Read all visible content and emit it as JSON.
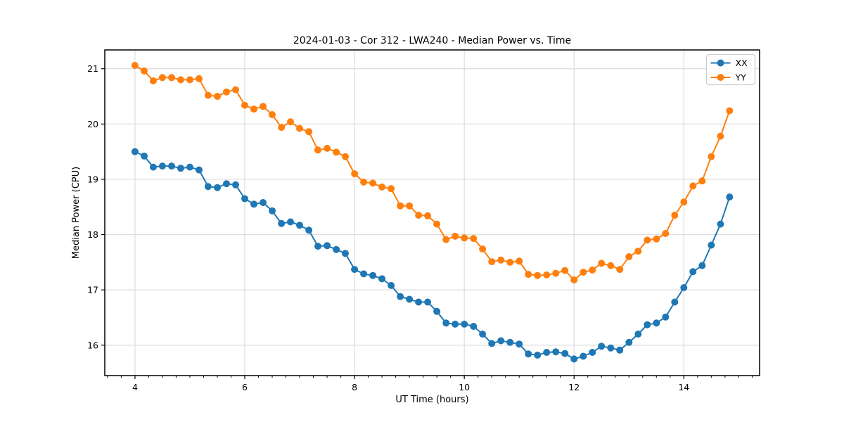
{
  "chart_data": {
    "type": "line",
    "title": "2024-01-03 - Cor 312 - LWA240 - Median Power vs. Time",
    "xlabel": "UT Time (hours)",
    "ylabel": "Median Power (CPU)",
    "xlim": [
      3.45,
      15.38
    ],
    "ylim": [
      15.45,
      21.34
    ],
    "xticks": [
      4,
      6,
      8,
      10,
      12,
      14
    ],
    "yticks": [
      16,
      17,
      18,
      19,
      20,
      21
    ],
    "x_minor_step": 0.25,
    "grid": true,
    "legend": {
      "position": "upper right",
      "entries": [
        {
          "label": "XX",
          "color": "#1f77b4"
        },
        {
          "label": "YY",
          "color": "#ff7f0e"
        }
      ]
    },
    "x": [
      4.0,
      4.167,
      4.333,
      4.5,
      4.667,
      4.833,
      5.0,
      5.167,
      5.333,
      5.5,
      5.667,
      5.833,
      6.0,
      6.167,
      6.333,
      6.5,
      6.667,
      6.833,
      7.0,
      7.167,
      7.333,
      7.5,
      7.667,
      7.833,
      8.0,
      8.167,
      8.333,
      8.5,
      8.667,
      8.833,
      9.0,
      9.167,
      9.333,
      9.5,
      9.667,
      9.833,
      10.0,
      10.167,
      10.333,
      10.5,
      10.667,
      10.833,
      11.0,
      11.167,
      11.333,
      11.5,
      11.667,
      11.833,
      12.0,
      12.167,
      12.333,
      12.5,
      12.667,
      12.833,
      13.0,
      13.167,
      13.333,
      13.5,
      13.667,
      13.833,
      14.0,
      14.167,
      14.333,
      14.5,
      14.667,
      14.833
    ],
    "series": [
      {
        "name": "XX",
        "color": "#1f77b4",
        "values": [
          19.5,
          19.42,
          19.22,
          19.24,
          19.24,
          19.2,
          19.22,
          19.17,
          18.87,
          18.85,
          18.92,
          18.9,
          18.65,
          18.55,
          18.58,
          18.43,
          18.2,
          18.23,
          18.17,
          18.08,
          17.79,
          17.8,
          17.73,
          17.66,
          17.37,
          17.29,
          17.26,
          17.2,
          17.08,
          16.88,
          16.83,
          16.78,
          16.78,
          16.61,
          16.4,
          16.38,
          16.38,
          16.34,
          16.2,
          16.03,
          16.08,
          16.05,
          16.02,
          15.84,
          15.82,
          15.87,
          15.88,
          15.85,
          15.75,
          15.8,
          15.87,
          15.98,
          15.95,
          15.91,
          16.05,
          16.2,
          16.37,
          16.4,
          16.51,
          16.78,
          17.04,
          17.33,
          17.44,
          17.81,
          18.19,
          18.68
        ]
      },
      {
        "name": "YY",
        "color": "#ff7f0e",
        "values": [
          21.06,
          20.96,
          20.78,
          20.84,
          20.84,
          20.8,
          20.8,
          20.82,
          20.52,
          20.5,
          20.58,
          20.62,
          20.34,
          20.27,
          20.32,
          20.17,
          19.94,
          20.04,
          19.92,
          19.86,
          19.53,
          19.56,
          19.49,
          19.41,
          19.1,
          18.95,
          18.93,
          18.86,
          18.83,
          18.52,
          18.52,
          18.35,
          18.34,
          18.19,
          17.91,
          17.97,
          17.94,
          17.93,
          17.74,
          17.51,
          17.54,
          17.5,
          17.52,
          17.28,
          17.26,
          17.27,
          17.3,
          17.35,
          17.18,
          17.32,
          17.36,
          17.48,
          17.44,
          17.37,
          17.6,
          17.7,
          17.9,
          17.92,
          18.02,
          18.35,
          18.59,
          18.88,
          18.97,
          19.41,
          19.78,
          20.24
        ]
      }
    ]
  }
}
